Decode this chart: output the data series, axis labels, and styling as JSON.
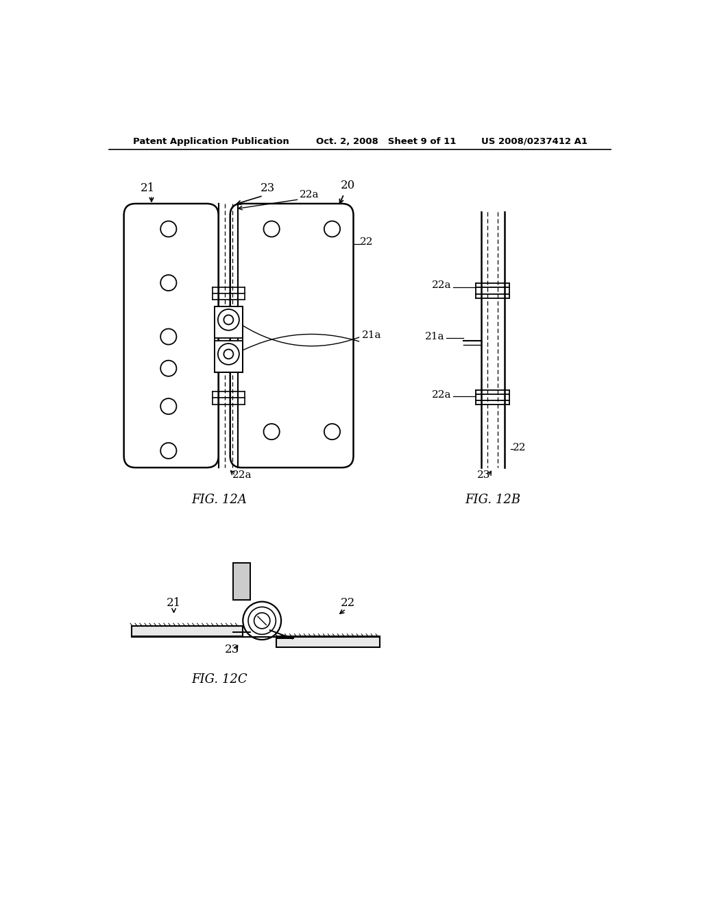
{
  "background_color": "#ffffff",
  "header_left": "Patent Application Publication",
  "header_center": "Oct. 2, 2008   Sheet 9 of 11",
  "header_right": "US 2008/0237412 A1",
  "fig12a_label": "FIG. 12A",
  "fig12b_label": "FIG. 12B",
  "fig12c_label": "FIG. 12C",
  "text_color": "#000000",
  "line_color": "#000000"
}
